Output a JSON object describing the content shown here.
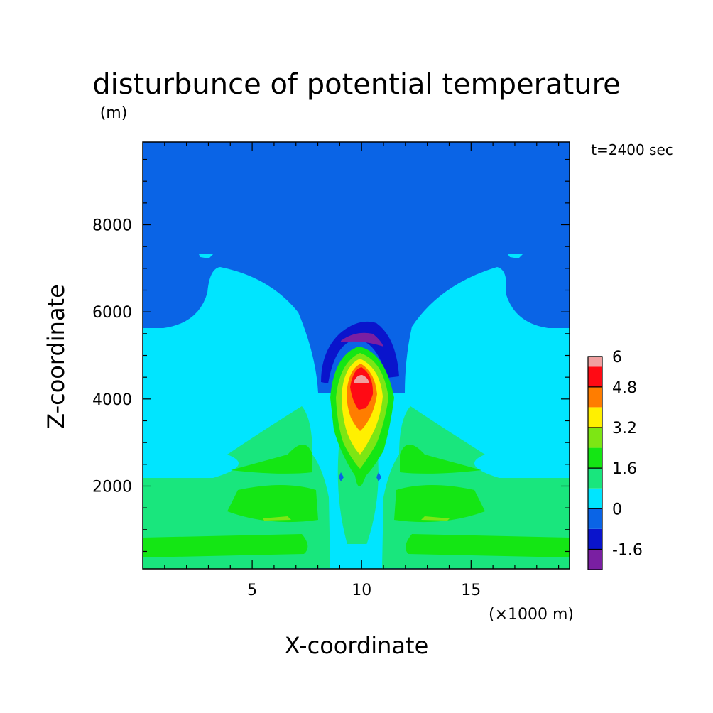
{
  "chart_data": {
    "type": "heatmap",
    "title": "disturbunce of potential temperature",
    "subtitle": "(m)",
    "annotation": "t=2400 sec",
    "xlabel": "X-coordinate",
    "ylabel": "Z-coordinate",
    "x_unit": "(×1000 m)",
    "xlim": [
      0,
      19.5
    ],
    "ylim": [
      100,
      9900
    ],
    "x_ticks": [
      5,
      10,
      15
    ],
    "x_tick_labels": [
      "5",
      "10",
      "15"
    ],
    "y_ticks": [
      2000,
      4000,
      6000,
      8000
    ],
    "y_tick_labels": [
      "2000",
      "4000",
      "6000",
      "8000"
    ],
    "colorbar": {
      "levels": [
        -2.4,
        -1.6,
        -0.8,
        0,
        0.8,
        1.6,
        2.4,
        3.2,
        4.0,
        4.8,
        5.6,
        6.0
      ],
      "colors": [
        "#7a1fa2",
        "#0a14cc",
        "#0a64e6",
        "#00e5ff",
        "#19e67d",
        "#14e614",
        "#7de614",
        "#fff000",
        "#ff7d00",
        "#ff0a14",
        "#f0a0a0"
      ],
      "tick_labels": [
        "6",
        "4.8",
        "3.2",
        "1.6",
        "0",
        "-1.6"
      ]
    },
    "regions": [
      {
        "name": "upper-negative",
        "value": -0.8,
        "color": "#0a64e6",
        "extent": "above ~5700 m at edges; center above ~6000 m"
      },
      {
        "name": "mid-near-zero",
        "value": 0.4,
        "color": "#00e5ff",
        "extent": "~2200-6000 m"
      },
      {
        "name": "low-positive",
        "value": 1.2,
        "color": "#19e67d",
        "extent": "below ~2200 m"
      },
      {
        "name": "thermal-cap-negative",
        "value": -1.6,
        "color": "#0a14cc",
        "extent": "x 8.2-11.8, z 4200-5900"
      },
      {
        "name": "thermal-core-max",
        "value": 6.0,
        "color": "#f0a0a0",
        "extent": "x 10.0, z 4400"
      }
    ]
  }
}
